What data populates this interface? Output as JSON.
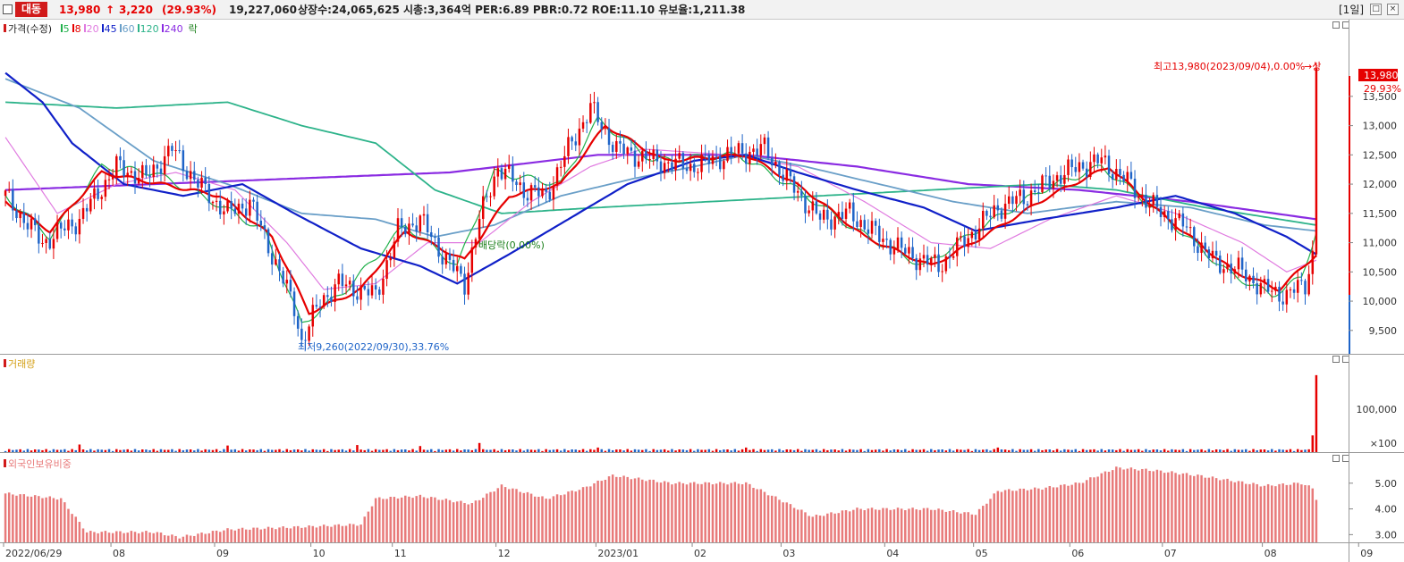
{
  "header": {
    "stock_name": "대동",
    "price": "13,980",
    "change_arrow": "↑",
    "change": "3,220",
    "change_pct": "(29.93%)",
    "volume": "19,227,060",
    "info": "상장수:24,065,625  시총:3,364억  PER:6.89  PBR:0.72  ROE:11.10  유보율:1,211.38",
    "period": "[1일]",
    "window_buttons": [
      "□",
      "×"
    ]
  },
  "legend": {
    "marker_color": "#d11a1a",
    "price_label": "가격(수정)",
    "ma": [
      {
        "label": "5",
        "color": "#22b14c"
      },
      {
        "label": "8",
        "color": "#e60000"
      },
      {
        "label": "20",
        "color": "#e07be0"
      },
      {
        "label": "45",
        "color": "#1020c8"
      },
      {
        "label": "60",
        "color": "#6a9fc8"
      },
      {
        "label": "120",
        "color": "#2db38a"
      },
      {
        "label": "240",
        "color": "#8a2be2"
      }
    ],
    "extra_label": "락",
    "extra_color": "#1a7f1a"
  },
  "annotations": {
    "high": "최고13,980(2023/09/04),0.00%",
    "high_suffix": "→상",
    "low": "최저9,260(2022/09/30),33.76%",
    "dividend": "배당락(0.00%)",
    "last_price_tag": "13,980",
    "last_change_tag": "29.93%"
  },
  "volume_panel": {
    "label": "거래량",
    "label_color": "#d4a017",
    "axis_labels": [
      "100,000",
      "×100"
    ]
  },
  "foreign_panel": {
    "label": "외국인보유비중",
    "label_color": "#e87a7a",
    "axis_labels": [
      "5.00",
      "4.00",
      "3.00"
    ]
  },
  "chart_data": {
    "type": "candlestick",
    "y_price_ticks": [
      "13,500",
      "13,000",
      "12,500",
      "12,000",
      "11,500",
      "11,000",
      "10,500",
      "10,000",
      "9,500"
    ],
    "y_price_range": [
      9100,
      14200
    ],
    "x_labels": [
      "2022/06/29",
      "08",
      "09",
      "10",
      "11",
      "12",
      "2023/01",
      "02",
      "03",
      "04",
      "05",
      "06",
      "07",
      "08",
      "09"
    ],
    "colors": {
      "up": "#e60000",
      "down": "#1f64c8"
    },
    "price_anchors": [
      [
        0,
        11800
      ],
      [
        10,
        11000
      ],
      [
        20,
        11400
      ],
      [
        30,
        12300
      ],
      [
        38,
        12100
      ],
      [
        45,
        12600
      ],
      [
        52,
        12000
      ],
      [
        60,
        11500
      ],
      [
        66,
        11700
      ],
      [
        72,
        10800
      ],
      [
        78,
        9900
      ],
      [
        80,
        9300
      ],
      [
        85,
        10000
      ],
      [
        90,
        10300
      ],
      [
        100,
        10100
      ],
      [
        106,
        11200
      ],
      [
        112,
        11400
      ],
      [
        118,
        10800
      ],
      [
        124,
        10300
      ],
      [
        128,
        11400
      ],
      [
        133,
        12300
      ],
      [
        140,
        11900
      ],
      [
        146,
        11800
      ],
      [
        152,
        12600
      ],
      [
        158,
        13300
      ],
      [
        165,
        12600
      ],
      [
        175,
        12400
      ],
      [
        185,
        12300
      ],
      [
        195,
        12500
      ],
      [
        205,
        12600
      ],
      [
        212,
        12000
      ],
      [
        220,
        11400
      ],
      [
        228,
        11500
      ],
      [
        236,
        11100
      ],
      [
        244,
        10800
      ],
      [
        252,
        10600
      ],
      [
        260,
        11100
      ],
      [
        268,
        11600
      ],
      [
        276,
        11800
      ],
      [
        283,
        12100
      ],
      [
        290,
        12300
      ],
      [
        296,
        12400
      ],
      [
        302,
        12100
      ],
      [
        310,
        11600
      ],
      [
        318,
        11300
      ],
      [
        326,
        10700
      ],
      [
        334,
        10500
      ],
      [
        340,
        10200
      ],
      [
        346,
        10100
      ],
      [
        351,
        10300
      ],
      [
        353,
        10800
      ],
      [
        354,
        13980
      ]
    ],
    "ma_anchors": {
      "ma5": [
        [
          0,
          11800
        ],
        [
          12,
          11100
        ],
        [
          26,
          12300
        ],
        [
          40,
          12200
        ],
        [
          56,
          11700
        ],
        [
          70,
          11200
        ],
        [
          80,
          9600
        ],
        [
          92,
          10200
        ],
        [
          108,
          11300
        ],
        [
          122,
          10600
        ],
        [
          132,
          12200
        ],
        [
          150,
          12000
        ],
        [
          160,
          13100
        ],
        [
          175,
          12400
        ],
        [
          198,
          12500
        ],
        [
          214,
          11900
        ],
        [
          230,
          11200
        ],
        [
          248,
          10600
        ],
        [
          262,
          11200
        ],
        [
          280,
          11900
        ],
        [
          296,
          12300
        ],
        [
          310,
          11600
        ],
        [
          330,
          10500
        ],
        [
          342,
          10100
        ],
        [
          350,
          10400
        ],
        [
          354,
          11200
        ]
      ],
      "ma8": [
        [
          0,
          11700
        ],
        [
          12,
          11200
        ],
        [
          26,
          12200
        ],
        [
          42,
          12000
        ],
        [
          58,
          11800
        ],
        [
          72,
          11100
        ],
        [
          82,
          9800
        ],
        [
          96,
          10200
        ],
        [
          108,
          11200
        ],
        [
          124,
          10700
        ],
        [
          136,
          11800
        ],
        [
          150,
          12000
        ],
        [
          162,
          13000
        ],
        [
          178,
          12400
        ],
        [
          200,
          12500
        ],
        [
          216,
          11900
        ],
        [
          232,
          11100
        ],
        [
          250,
          10600
        ],
        [
          264,
          11100
        ],
        [
          282,
          11800
        ],
        [
          298,
          12300
        ],
        [
          312,
          11500
        ],
        [
          332,
          10500
        ],
        [
          344,
          10200
        ],
        [
          354,
          10800
        ]
      ],
      "ma20": [
        [
          0,
          12800
        ],
        [
          14,
          11500
        ],
        [
          30,
          12000
        ],
        [
          46,
          12200
        ],
        [
          62,
          11900
        ],
        [
          76,
          11000
        ],
        [
          86,
          10200
        ],
        [
          100,
          10300
        ],
        [
          114,
          11000
        ],
        [
          128,
          11000
        ],
        [
          142,
          11700
        ],
        [
          158,
          12300
        ],
        [
          172,
          12600
        ],
        [
          196,
          12500
        ],
        [
          214,
          12300
        ],
        [
          232,
          11700
        ],
        [
          250,
          11000
        ],
        [
          266,
          10900
        ],
        [
          282,
          11400
        ],
        [
          300,
          11800
        ],
        [
          316,
          11500
        ],
        [
          334,
          11000
        ],
        [
          346,
          10500
        ],
        [
          354,
          10700
        ]
      ],
      "ma45": [
        [
          0,
          13900
        ],
        [
          10,
          13400
        ],
        [
          18,
          12700
        ],
        [
          32,
          12000
        ],
        [
          48,
          11800
        ],
        [
          64,
          12000
        ],
        [
          78,
          11500
        ],
        [
          96,
          10900
        ],
        [
          112,
          10600
        ],
        [
          122,
          10300
        ],
        [
          136,
          10800
        ],
        [
          152,
          11400
        ],
        [
          168,
          12000
        ],
        [
          186,
          12400
        ],
        [
          200,
          12500
        ],
        [
          214,
          12200
        ],
        [
          230,
          11900
        ],
        [
          248,
          11600
        ],
        [
          262,
          11200
        ],
        [
          280,
          11400
        ],
        [
          300,
          11600
        ],
        [
          316,
          11800
        ],
        [
          332,
          11500
        ],
        [
          346,
          11100
        ],
        [
          354,
          10800
        ]
      ],
      "ma60": [
        [
          0,
          13800
        ],
        [
          20,
          13300
        ],
        [
          40,
          12400
        ],
        [
          60,
          12000
        ],
        [
          80,
          11500
        ],
        [
          100,
          11400
        ],
        [
          116,
          11100
        ],
        [
          132,
          11300
        ],
        [
          150,
          11800
        ],
        [
          170,
          12100
        ],
        [
          186,
          12300
        ],
        [
          200,
          12500
        ],
        [
          216,
          12300
        ],
        [
          236,
          12000
        ],
        [
          256,
          11700
        ],
        [
          276,
          11500
        ],
        [
          300,
          11700
        ],
        [
          320,
          11600
        ],
        [
          340,
          11300
        ],
        [
          354,
          11200
        ]
      ],
      "ma120": [
        [
          0,
          13400
        ],
        [
          30,
          13300
        ],
        [
          60,
          13400
        ],
        [
          80,
          13000
        ],
        [
          100,
          12700
        ],
        [
          116,
          11900
        ],
        [
          134,
          11500
        ],
        [
          160,
          11600
        ],
        [
          190,
          11700
        ],
        [
          220,
          11800
        ],
        [
          250,
          11900
        ],
        [
          280,
          12000
        ],
        [
          300,
          11900
        ],
        [
          324,
          11600
        ],
        [
          354,
          11300
        ]
      ],
      "ma240": [
        [
          0,
          11900
        ],
        [
          40,
          12000
        ],
        [
          80,
          12100
        ],
        [
          120,
          12200
        ],
        [
          160,
          12500
        ],
        [
          200,
          12500
        ],
        [
          230,
          12300
        ],
        [
          260,
          12000
        ],
        [
          290,
          11900
        ],
        [
          320,
          11700
        ],
        [
          354,
          11400
        ]
      ]
    },
    "volume_range": [
      0,
      180000
    ],
    "volume_baseline": 4000,
    "volume_spikes": [
      [
        20,
        15000
      ],
      [
        60,
        13000
      ],
      [
        95,
        14000
      ],
      [
        112,
        12000
      ],
      [
        128,
        18000
      ],
      [
        160,
        9000
      ],
      [
        200,
        9000
      ],
      [
        268,
        9000
      ],
      [
        353,
        33000
      ],
      [
        354,
        152000
      ]
    ],
    "foreign_range": [
      2.7,
      6.0
    ],
    "foreign_anchors": [
      [
        0,
        4.6
      ],
      [
        15,
        4.4
      ],
      [
        22,
        3.1
      ],
      [
        40,
        3.1
      ],
      [
        47,
        2.9
      ],
      [
        60,
        3.2
      ],
      [
        80,
        3.3
      ],
      [
        96,
        3.4
      ],
      [
        100,
        4.4
      ],
      [
        112,
        4.5
      ],
      [
        126,
        4.2
      ],
      [
        134,
        4.9
      ],
      [
        146,
        4.4
      ],
      [
        156,
        4.8
      ],
      [
        164,
        5.3
      ],
      [
        180,
        5.0
      ],
      [
        200,
        5.0
      ],
      [
        210,
        4.3
      ],
      [
        218,
        3.7
      ],
      [
        230,
        4.0
      ],
      [
        250,
        4.0
      ],
      [
        262,
        3.8
      ],
      [
        268,
        4.7
      ],
      [
        280,
        4.8
      ],
      [
        290,
        5.0
      ],
      [
        300,
        5.6
      ],
      [
        310,
        5.5
      ],
      [
        322,
        5.3
      ],
      [
        340,
        4.9
      ],
      [
        350,
        5.0
      ],
      [
        353,
        4.8
      ],
      [
        354,
        4.4
      ]
    ]
  }
}
